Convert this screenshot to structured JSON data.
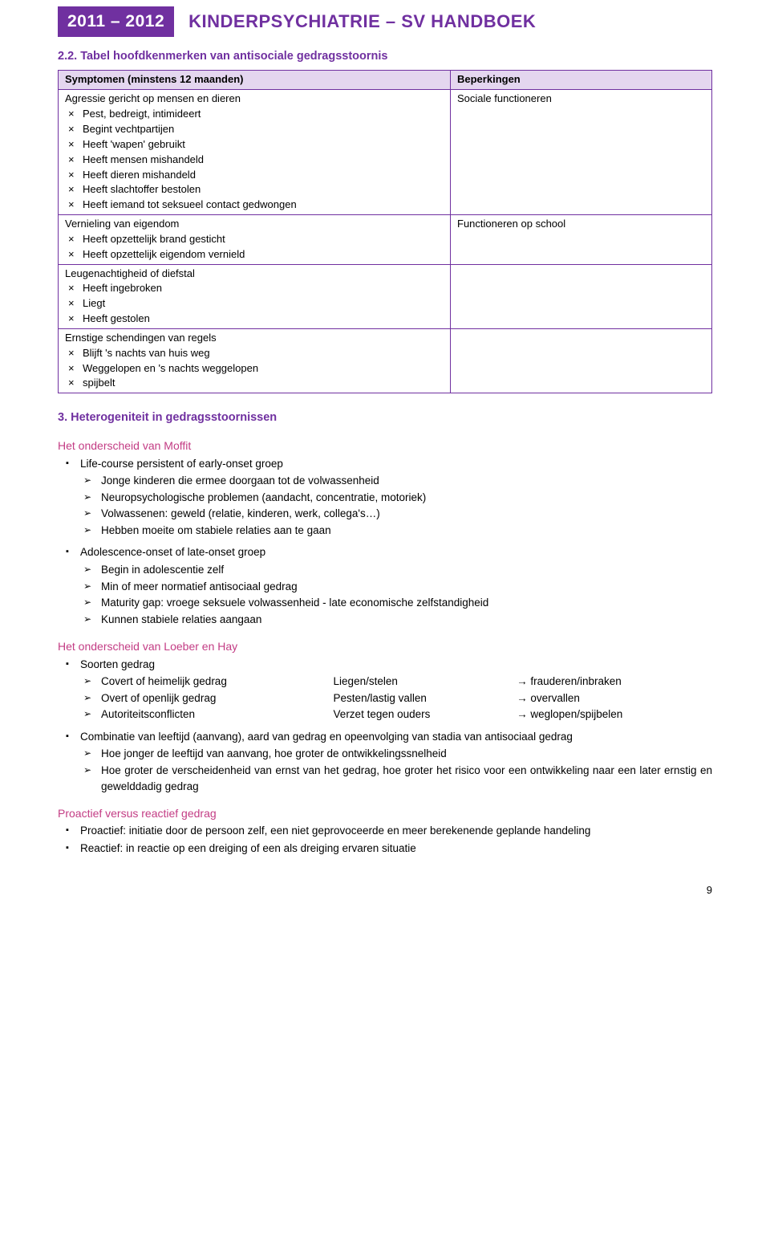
{
  "header": {
    "year": "2011 – 2012",
    "title": "KINDERPSYCHIATRIE – SV HANDBOEK"
  },
  "section22": {
    "num_title": "2.2. Tabel hoofdkenmerken van antisociale gedragsstoornis",
    "th_left": "Symptomen (minstens 12 maanden)",
    "th_right": "Beperkingen",
    "rows": [
      {
        "left_title": "Agressie gericht op mensen en dieren",
        "left_items": [
          "Pest, bedreigt, intimideert",
          "Begint vechtpartijen",
          "Heeft 'wapen' gebruikt",
          "Heeft mensen mishandeld",
          "Heeft dieren mishandeld",
          "Heeft slachtoffer bestolen",
          "Heeft iemand tot seksueel contact gedwongen"
        ],
        "right": "Sociale functioneren"
      },
      {
        "left_title": "Vernieling van eigendom",
        "left_items": [
          "Heeft opzettelijk brand gesticht",
          "Heeft opzettelijk eigendom vernield"
        ],
        "right": "Functioneren op school"
      },
      {
        "left_title": "Leugenachtigheid of diefstal",
        "left_items": [
          "Heeft ingebroken",
          "Liegt",
          "Heeft gestolen"
        ],
        "right": ""
      },
      {
        "left_title": "Ernstige schendingen van regels",
        "left_items": [
          "Blijft 's nachts van huis weg",
          "Weggelopen en 's nachts weggelopen",
          "spijbelt"
        ],
        "right": ""
      }
    ]
  },
  "section3": {
    "num_title": "3.  Heterogeniteit in gedragsstoornissen",
    "moffit_heading": "Het onderscheid van Moffit",
    "moffit_groups": [
      {
        "title": "Life-course persistent of early-onset groep",
        "items": [
          "Jonge kinderen die ermee doorgaan tot de volwassenheid",
          "Neuropsychologische problemen (aandacht, concentratie, motoriek)",
          "Volwassenen: geweld (relatie, kinderen, werk, collega's…)",
          "Hebben moeite om stabiele relaties aan te gaan"
        ]
      },
      {
        "title": "Adolescence-onset of late-onset groep",
        "items": [
          "Begin in adolescentie zelf",
          "Min of meer normatief antisociaal gedrag",
          "Maturity gap: vroege seksuele volwassenheid - late economische zelfstandigheid",
          "Kunnen stabiele relaties aangaan"
        ]
      }
    ],
    "loeber_heading": "Het onderscheid van Loeber en Hay",
    "loeber_intro": "Soorten gedrag",
    "loeber_rows": [
      {
        "c1": "Covert of heimelijk gedrag",
        "c2": "Liegen/stelen",
        "c3": "frauderen/inbraken"
      },
      {
        "c1": "Overt of openlijk gedrag",
        "c2": "Pesten/lastig vallen",
        "c3": "overvallen"
      },
      {
        "c1": "Autoriteitsconflicten",
        "c2": "Verzet tegen ouders",
        "c3": "weglopen/spijbelen"
      }
    ],
    "combo_title": "Combinatie van leeftijd (aanvang), aard van gedrag en opeenvolging van stadia van antisociaal gedrag",
    "combo_items": [
      "Hoe jonger de leeftijd van aanvang, hoe groter de ontwikkelingssnelheid",
      "Hoe groter de verscheidenheid van ernst van het gedrag, hoe groter het risico voor een ontwikkeling naar een later ernstig en gewelddadig gedrag"
    ],
    "proactive_heading": "Proactief versus reactief gedrag",
    "proactive_items": [
      {
        "label": "Proactief:",
        "text": " initiatie door de persoon zelf, een niet geprovoceerde en meer berekenende geplande handeling"
      },
      {
        "label": "Reactief:",
        "text": " in reactie op een dreiging of een als dreiging ervaren situatie"
      }
    ]
  },
  "page_number": "9"
}
